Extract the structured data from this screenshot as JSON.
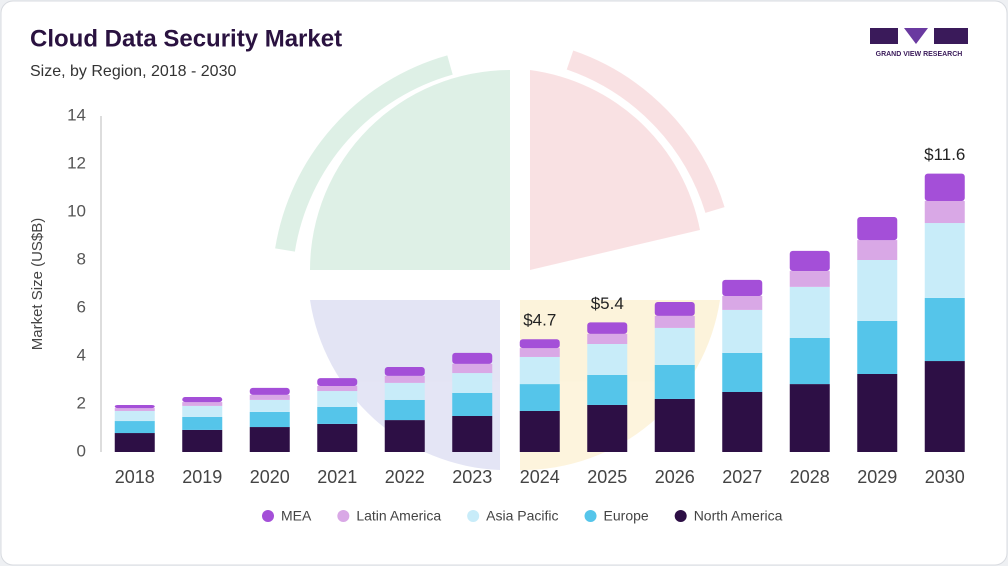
{
  "chart_data": {
    "type": "stacked-bar",
    "title": "Cloud Data Security Market",
    "subtitle": "Size, by Region, 2018 - 2030",
    "y_label": "Market Size (US$B)",
    "logo_text": "GRAND VIEW RESEARCH",
    "categories": [
      "2018",
      "2019",
      "2020",
      "2021",
      "2022",
      "2023",
      "2024",
      "2025",
      "2026",
      "2027",
      "2028",
      "2029",
      "2030"
    ],
    "series": [
      {
        "name": "North America",
        "color": "#2d0f45",
        "values": [
          0.79,
          0.92,
          1.04,
          1.17,
          1.33,
          1.5,
          1.71,
          1.96,
          2.21,
          2.5,
          2.83,
          3.25,
          3.79
        ]
      },
      {
        "name": "Europe",
        "color": "#55c5ea",
        "values": [
          0.5,
          0.54,
          0.63,
          0.71,
          0.84,
          0.96,
          1.12,
          1.25,
          1.42,
          1.63,
          1.92,
          2.21,
          2.63
        ]
      },
      {
        "name": "Asia Pacific",
        "color": "#c8ecf9",
        "values": [
          0.42,
          0.46,
          0.5,
          0.66,
          0.71,
          0.83,
          1.13,
          1.29,
          1.54,
          1.79,
          2.13,
          2.54,
          3.12
        ]
      },
      {
        "name": "Latin America",
        "color": "#d9a8e6",
        "values": [
          0.12,
          0.16,
          0.21,
          0.21,
          0.29,
          0.38,
          0.37,
          0.42,
          0.5,
          0.58,
          0.66,
          0.83,
          0.92
        ]
      },
      {
        "name": "MEA",
        "color": "#a44fd8",
        "values": [
          0.13,
          0.21,
          0.29,
          0.33,
          0.37,
          0.46,
          0.37,
          0.48,
          0.58,
          0.67,
          0.84,
          0.96,
          1.14
        ]
      }
    ],
    "totals": [
      null,
      null,
      null,
      null,
      null,
      null,
      4.7,
      5.4,
      null,
      null,
      null,
      null,
      11.6
    ],
    "total_labels": [
      null,
      null,
      null,
      null,
      null,
      null,
      "$4.7",
      "$5.4",
      null,
      null,
      null,
      null,
      "$11.6"
    ],
    "ylim": [
      0,
      14
    ],
    "yticks": [
      0,
      2,
      4,
      6,
      8,
      10,
      12,
      14
    ],
    "grid": false
  }
}
